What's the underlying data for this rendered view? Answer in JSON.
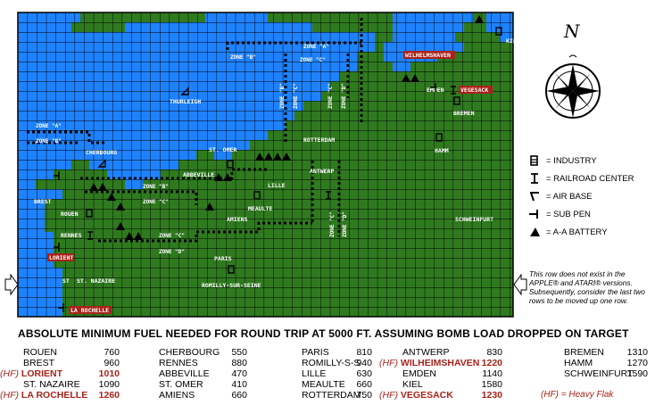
{
  "map": {
    "labels": {
      "kiel": "KIEL",
      "wilhelmshaven": "WILHELMSHAVEN",
      "emden": "EMDEN",
      "vegesack": "VEGESACK",
      "bremen": "BREMEN",
      "hamm": "HAMM",
      "thurleigh": "THURLEIGH",
      "rotterdam": "ROTTERDAM",
      "antwerp": "ANTWERP",
      "lille": "LILLE",
      "st_omer": "ST. OMER",
      "cherbourg": "CHERBOURG",
      "abbeville": "ABBEVILLE",
      "meaulte": "MEAULTE",
      "amiens": "AMIENS",
      "brest": "BREST",
      "rouen": "ROUEN",
      "rennes": "RENNES",
      "lorient": "LORIENT",
      "st_nazaire": "ST. NAZAIRE",
      "la_rochelle": "LA ROCHELLE",
      "paris": "PARIS",
      "romilly": "ROMILLY-SUR-SEINE",
      "schweinfurt": "SCHWEINFURT",
      "st": "ST"
    },
    "zones": {
      "a_top": "ZONE \"A\"",
      "b_top": "ZONE \"B\"",
      "c_top": "ZONE \"C\"",
      "a_left": "ZONE \"A\"",
      "b_left": "ZONE \"B\"",
      "b_mid": "ZONE \"B\"",
      "c_mid": "ZONE \"C\"",
      "c_low": "ZONE \"C\"",
      "d_low": "ZONE \"D\"",
      "b_vert": "ZONE \"B\"",
      "c_vert": "ZONE \"C\"",
      "c_vert2": "ZONE \"C\"",
      "d_vert": "ZONE \"D\"",
      "c_vert3": "ZONE \"C\"",
      "d_vert2": "ZONE \"D\""
    },
    "colors": {
      "sea": "#1e82ff",
      "land": "#2f7a1f",
      "grid": "#000000",
      "heavy_flak": "#a8231a"
    }
  },
  "compass_letter": "N",
  "legend": [
    {
      "icon": "industry-icon",
      "label": "= INDUSTRY"
    },
    {
      "icon": "railroad-center-icon",
      "label": "= RAILROAD CENTER"
    },
    {
      "icon": "air-base-icon",
      "label": "= AIR BASE"
    },
    {
      "icon": "sub-pen-icon",
      "label": "= SUB PEN"
    },
    {
      "icon": "aa-battery-icon",
      "label": "= A-A BATTERY"
    }
  ],
  "note": "This row does not exist in the APPLE® and ATARI® versions. Subsequently, consider the last two rows to be moved up one row.",
  "fuel_title": "ABSOLUTE MINIMUM FUEL NEEDED FOR ROUND TRIP AT 5000 FT. ASSUMING BOMB LOAD DROPPED ON TARGET",
  "fuel_columns": [
    [
      {
        "prefix": "",
        "name": "ROUEN",
        "value": "760",
        "flak": false
      },
      {
        "prefix": "",
        "name": "BREST",
        "value": "960",
        "flak": false
      },
      {
        "prefix": "(HF)",
        "name": "LORIENT",
        "value": "1010",
        "flak": true
      },
      {
        "prefix": "",
        "name": "ST. NAZAIRE",
        "value": "1090",
        "flak": false
      },
      {
        "prefix": "(HF)",
        "name": "LA ROCHELLE",
        "value": "1260",
        "flak": true
      }
    ],
    [
      {
        "prefix": "",
        "name": "CHERBOURG",
        "value": "550",
        "flak": false
      },
      {
        "prefix": "",
        "name": "RENNES",
        "value": "880",
        "flak": false
      },
      {
        "prefix": "",
        "name": "ABBEVILLE",
        "value": "470",
        "flak": false
      },
      {
        "prefix": "",
        "name": "ST. OMER",
        "value": "410",
        "flak": false
      },
      {
        "prefix": "",
        "name": "AMIENS",
        "value": "660",
        "flak": false
      }
    ],
    [
      {
        "prefix": "",
        "name": "PARIS",
        "value": "810",
        "flak": false
      },
      {
        "prefix": "",
        "name": "ROMILLY-S-S",
        "value": "940",
        "flak": false
      },
      {
        "prefix": "",
        "name": "LILLE",
        "value": "630",
        "flak": false
      },
      {
        "prefix": "",
        "name": "MEAULTE",
        "value": "660",
        "flak": false
      },
      {
        "prefix": "",
        "name": "ROTTERDAM",
        "value": "750",
        "flak": false
      }
    ],
    [
      {
        "prefix": "",
        "name": "ANTWERP",
        "value": "830",
        "flak": false
      },
      {
        "prefix": "(HF)",
        "name": "WILHEIMSHAVEN",
        "value": "1220",
        "flak": true
      },
      {
        "prefix": "",
        "name": "EMDEN",
        "value": "1140",
        "flak": false
      },
      {
        "prefix": "",
        "name": "KIEL",
        "value": "1580",
        "flak": false
      },
      {
        "prefix": "(HF)",
        "name": "VEGESACK",
        "value": "1230",
        "flak": true
      }
    ],
    [
      {
        "prefix": "",
        "name": "BREMEN",
        "value": "1310",
        "flak": false
      },
      {
        "prefix": "",
        "name": "HAMM",
        "value": "1270",
        "flak": false
      },
      {
        "prefix": "",
        "name": "SCHWEINFURT",
        "value": "1590",
        "flak": false
      },
      {
        "prefix": "",
        "name": "",
        "value": "",
        "flak": false
      },
      {
        "prefix": "",
        "name": "(HF) = Heavy Flak",
        "value": "",
        "flak": false,
        "key": true
      }
    ]
  ]
}
